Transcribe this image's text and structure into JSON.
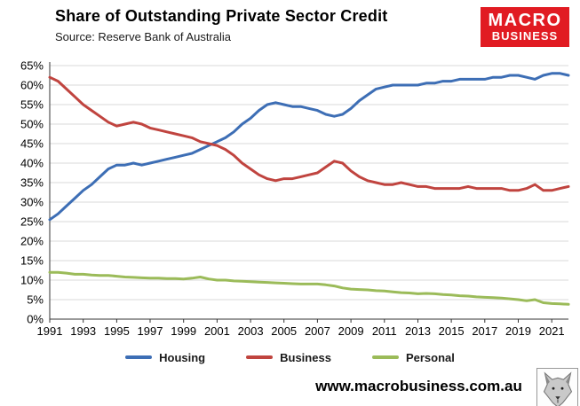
{
  "header": {
    "title": "Share of Outstanding Private Sector Credit",
    "source": "Source: Reserve Bank of Australia",
    "logo": {
      "line1": "MACRO",
      "line2": "BUSINESS",
      "bg_color": "#e11b22",
      "text_color": "#ffffff"
    }
  },
  "footer": {
    "website": "www.macrobusiness.com.au"
  },
  "chart_data": {
    "type": "line",
    "title": "Share of Outstanding Private Sector Credit",
    "xlabel": "",
    "ylabel": "",
    "ylim": [
      0,
      65
    ],
    "ytick_step": 5,
    "ytick_suffix": "%",
    "grid": "horizontal",
    "legend_position": "bottom",
    "xticks": [
      1991,
      1993,
      1995,
      1997,
      1999,
      2001,
      2003,
      2005,
      2007,
      2009,
      2011,
      2013,
      2015,
      2017,
      2019,
      2021
    ],
    "x": [
      1991,
      1991.5,
      1992,
      1992.5,
      1993,
      1993.5,
      1994,
      1994.5,
      1995,
      1995.5,
      1996,
      1996.5,
      1997,
      1997.5,
      1998,
      1998.5,
      1999,
      1999.5,
      2000,
      2000.5,
      2001,
      2001.5,
      2002,
      2002.5,
      2003,
      2003.5,
      2004,
      2004.5,
      2005,
      2005.5,
      2006,
      2006.5,
      2007,
      2007.5,
      2008,
      2008.5,
      2009,
      2009.5,
      2010,
      2010.5,
      2011,
      2011.5,
      2012,
      2012.5,
      2013,
      2013.5,
      2014,
      2014.5,
      2015,
      2015.5,
      2016,
      2016.5,
      2017,
      2017.5,
      2018,
      2018.5,
      2019,
      2019.5,
      2020,
      2020.5,
      2021,
      2021.5,
      2022
    ],
    "series": [
      {
        "name": "Housing",
        "color": "#3d6eb5",
        "values": [
          25.5,
          27.0,
          29.0,
          31.0,
          33.0,
          34.5,
          36.5,
          38.5,
          39.5,
          39.5,
          40.0,
          39.5,
          40.0,
          40.5,
          41.0,
          41.5,
          42.0,
          42.5,
          43.5,
          44.5,
          45.5,
          46.5,
          48.0,
          50.0,
          51.5,
          53.5,
          55.0,
          55.5,
          55.0,
          54.5,
          54.5,
          54.0,
          53.5,
          52.5,
          52.0,
          52.5,
          54.0,
          56.0,
          57.5,
          59.0,
          59.5,
          60.0,
          60.0,
          60.0,
          60.0,
          60.5,
          60.5,
          61.0,
          61.0,
          61.5,
          61.5,
          61.5,
          61.5,
          62.0,
          62.0,
          62.5,
          62.5,
          62.0,
          61.5,
          62.5,
          63.0,
          63.0,
          62.5
        ]
      },
      {
        "name": "Business",
        "color": "#c0443f",
        "values": [
          62.0,
          61.0,
          59.0,
          57.0,
          55.0,
          53.5,
          52.0,
          50.5,
          49.5,
          50.0,
          50.5,
          50.0,
          49.0,
          48.5,
          48.0,
          47.5,
          47.0,
          46.5,
          45.5,
          45.0,
          44.5,
          43.5,
          42.0,
          40.0,
          38.5,
          37.0,
          36.0,
          35.5,
          36.0,
          36.0,
          36.5,
          37.0,
          37.5,
          39.0,
          40.5,
          40.0,
          38.0,
          36.5,
          35.5,
          35.0,
          34.5,
          34.5,
          35.0,
          34.5,
          34.0,
          34.0,
          33.5,
          33.5,
          33.5,
          33.5,
          34.0,
          33.5,
          33.5,
          33.5,
          33.5,
          33.0,
          33.0,
          33.5,
          34.5,
          33.0,
          33.0,
          33.5,
          34.0
        ]
      },
      {
        "name": "Personal",
        "color": "#9bbb59",
        "values": [
          12.0,
          12.0,
          11.8,
          11.5,
          11.5,
          11.3,
          11.2,
          11.2,
          11.0,
          10.8,
          10.7,
          10.6,
          10.5,
          10.5,
          10.4,
          10.4,
          10.3,
          10.5,
          10.8,
          10.3,
          10.0,
          10.0,
          9.8,
          9.7,
          9.6,
          9.5,
          9.4,
          9.3,
          9.2,
          9.1,
          9.0,
          9.0,
          9.0,
          8.8,
          8.5,
          8.0,
          7.7,
          7.6,
          7.5,
          7.3,
          7.2,
          7.0,
          6.8,
          6.7,
          6.5,
          6.6,
          6.5,
          6.3,
          6.2,
          6.0,
          5.9,
          5.7,
          5.6,
          5.5,
          5.4,
          5.2,
          5.0,
          4.7,
          5.0,
          4.2,
          4.0,
          3.9,
          3.8
        ]
      }
    ]
  }
}
